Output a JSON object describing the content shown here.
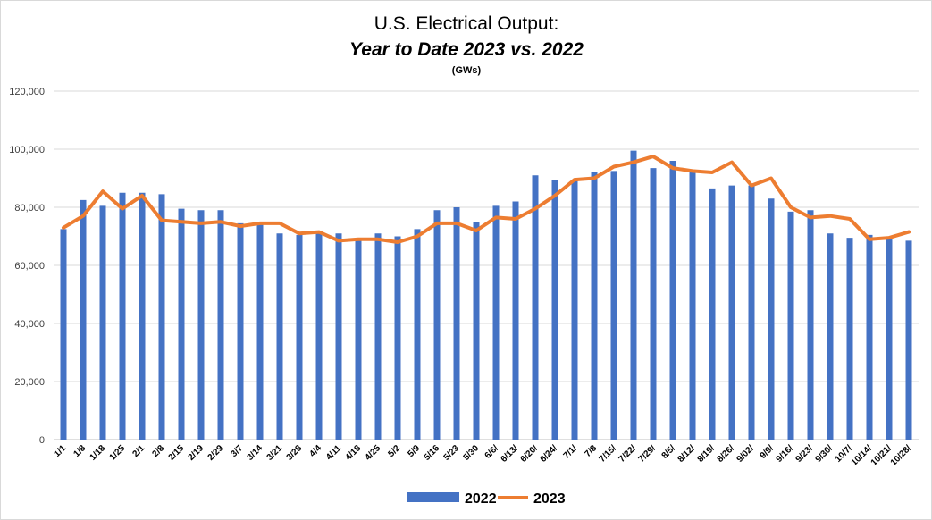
{
  "chart_data": {
    "type": "bar",
    "title": "U.S. Electrical Output:",
    "subtitle": "Year to Date 2023 vs. 2022",
    "unit_label": "(GWs)",
    "categories": [
      "1/1",
      "1/8",
      "1/18",
      "1/25",
      "2/1",
      "2/8",
      "2/15",
      "2/19",
      "2/29",
      "3/7",
      "3/14",
      "3/21",
      "3/28",
      "4/4",
      "4/11",
      "4/18",
      "4/25",
      "5/2",
      "5/9",
      "5/16",
      "5/23",
      "5/30",
      "6/6/",
      "6/13/",
      "6/20/",
      "6/24/",
      "7/1/",
      "7/8",
      "7/15/",
      "7/22/",
      "7/29/",
      "8/5/",
      "8/12/",
      "8/19/",
      "8/26/",
      "9/02/",
      "9/9/",
      "9/16/",
      "9/23/",
      "9/30/",
      "10/7/",
      "10/14/",
      "10/21/",
      "10/28/"
    ],
    "series": [
      {
        "name": "2022",
        "type": "bar",
        "color": "#4472c4",
        "values": [
          72500,
          82500,
          80500,
          85000,
          85000,
          84500,
          79500,
          79000,
          79000,
          74500,
          75000,
          71000,
          70500,
          71500,
          71000,
          69000,
          71000,
          70000,
          72500,
          79000,
          80000,
          75000,
          80500,
          82000,
          91000,
          89500,
          89500,
          92000,
          92500,
          99500,
          93500,
          96000,
          92000,
          86500,
          87500,
          87500,
          83000,
          78500,
          79000,
          71000,
          69500,
          70500,
          69500,
          68500
        ]
      },
      {
        "name": "2023",
        "type": "line",
        "color": "#ed7d31",
        "values": [
          73000,
          77000,
          85500,
          79500,
          84000,
          75500,
          75000,
          74500,
          75000,
          73500,
          74500,
          74500,
          71000,
          71500,
          68500,
          69000,
          69000,
          68000,
          70000,
          74500,
          74500,
          72000,
          76500,
          76000,
          79500,
          84000,
          89500,
          90000,
          94000,
          95500,
          97500,
          93500,
          92500,
          92000,
          95500,
          87500,
          90000,
          80000,
          76500,
          77000,
          76000,
          69000,
          69500,
          71500
        ]
      }
    ],
    "ylim": [
      0,
      120000
    ],
    "yticks": [
      "0",
      "20,000",
      "40,000",
      "60,000",
      "80,000",
      "100,000",
      "120,000"
    ],
    "grid": true,
    "legend_position": "bottom"
  },
  "colors": {
    "bar": "#4472c4",
    "line": "#ed7d31",
    "grid": "#d9d9d9"
  }
}
